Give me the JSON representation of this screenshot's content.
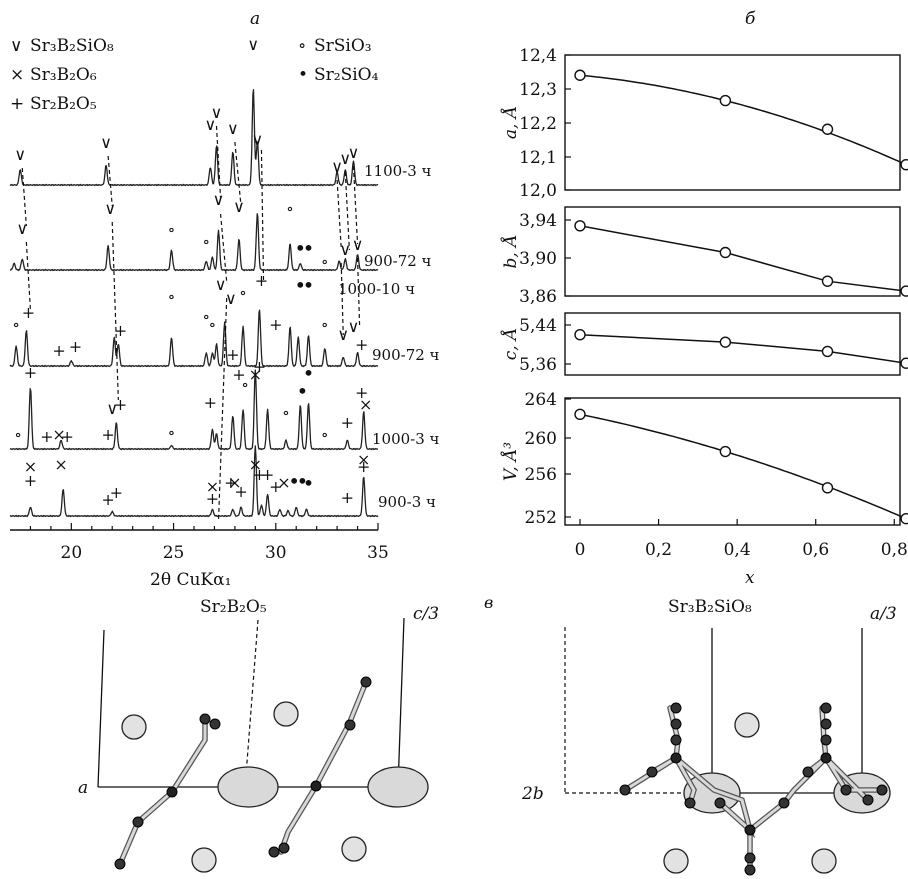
{
  "panels": {
    "a": "a",
    "b": "б",
    "c": "в"
  },
  "xrd": {
    "xlabel": "2θ CuKα₁",
    "xticks": [
      20,
      25,
      30,
      35
    ],
    "xlim": [
      17,
      35
    ],
    "legend": [
      {
        "symbol": "∨",
        "label": "Sr₃B₂SiO₈"
      },
      {
        "symbol": "×",
        "label": "Sr₃B₂O₆"
      },
      {
        "symbol": "+",
        "label": "Sr₂B₂O₅"
      },
      {
        "symbol": "∘",
        "label": "SrSiO₃"
      },
      {
        "symbol": "•",
        "label": "Sr₂SiO₄"
      }
    ],
    "traces": [
      {
        "label": "1100-3 ч",
        "peaks": [
          [
            17.5,
            0.35
          ],
          [
            21.7,
            0.45
          ],
          [
            26.8,
            0.4
          ],
          [
            27.1,
            0.9
          ],
          [
            27.9,
            0.75
          ],
          [
            28.9,
            2.2
          ],
          [
            29.1,
            1.0
          ],
          [
            33.0,
            0.3
          ],
          [
            33.4,
            0.35
          ],
          [
            33.8,
            0.55
          ]
        ]
      },
      {
        "label": "900-72 ч",
        "peaks": [
          [
            17.2,
            0.15
          ],
          [
            17.6,
            0.25
          ],
          [
            21.8,
            0.55
          ],
          [
            24.9,
            0.45
          ],
          [
            26.6,
            0.2
          ],
          [
            26.9,
            0.3
          ],
          [
            27.2,
            0.9
          ],
          [
            28.2,
            0.7
          ],
          [
            29.1,
            1.3
          ],
          [
            30.7,
            0.6
          ],
          [
            31.2,
            0.15
          ],
          [
            33.1,
            0.2
          ],
          [
            33.4,
            0.25
          ],
          [
            34.0,
            0.35
          ]
        ]
      },
      {
        "label": "900-72 ч",
        "peaks": [
          [
            17.3,
            0.45
          ],
          [
            17.8,
            0.8
          ],
          [
            20.0,
            0.12
          ],
          [
            22.1,
            0.65
          ],
          [
            22.3,
            0.5
          ],
          [
            24.9,
            0.65
          ],
          [
            26.6,
            0.3
          ],
          [
            26.9,
            0.3
          ],
          [
            27.1,
            0.5
          ],
          [
            27.5,
            1.0
          ],
          [
            28.4,
            0.9
          ],
          [
            29.2,
            1.3
          ],
          [
            30.7,
            0.9
          ],
          [
            31.1,
            0.65
          ],
          [
            31.6,
            0.7
          ],
          [
            32.4,
            0.4
          ],
          [
            33.3,
            0.2
          ],
          [
            34.0,
            0.3
          ]
        ]
      },
      {
        "label": "1000-3 ч",
        "peaks": [
          [
            18.0,
            1.4
          ],
          [
            19.5,
            0.2
          ],
          [
            22.2,
            0.6
          ],
          [
            24.9,
            0.08
          ],
          [
            26.9,
            0.45
          ],
          [
            27.1,
            0.35
          ],
          [
            27.9,
            0.75
          ],
          [
            28.4,
            0.9
          ],
          [
            29.0,
            1.8
          ],
          [
            29.6,
            0.9
          ],
          [
            30.5,
            0.2
          ],
          [
            31.2,
            1.0
          ],
          [
            31.6,
            1.05
          ],
          [
            33.5,
            0.2
          ],
          [
            34.3,
            0.85
          ]
        ]
      },
      {
        "label": "900-3 ч",
        "peaks": [
          [
            18.0,
            0.2
          ],
          [
            19.6,
            0.6
          ],
          [
            22.0,
            0.1
          ],
          [
            26.9,
            0.15
          ],
          [
            27.9,
            0.15
          ],
          [
            28.3,
            0.2
          ],
          [
            29.0,
            1.6
          ],
          [
            29.3,
            0.25
          ],
          [
            29.6,
            0.5
          ],
          [
            30.2,
            0.15
          ],
          [
            30.6,
            0.12
          ],
          [
            31.0,
            0.2
          ],
          [
            31.5,
            0.15
          ],
          [
            34.3,
            0.9
          ]
        ]
      }
    ],
    "annotations": [
      {
        "label": "1000-10 ч"
      }
    ]
  },
  "chart_data": [
    {
      "type": "scatter",
      "panel": "б",
      "ylabel": "a, Å",
      "x": [
        0,
        0.37,
        0.63,
        0.83
      ],
      "y": [
        12.34,
        12.265,
        12.18,
        12.075
      ],
      "xlim": [
        0,
        0.84
      ],
      "ylim": [
        12.0,
        12.4
      ],
      "yticks": [
        "12,0",
        "12,1",
        "12,2",
        "12,3",
        "12,4"
      ],
      "fit": "curve"
    },
    {
      "type": "scatter",
      "panel": "б",
      "ylabel": "b, Å",
      "x": [
        0,
        0.37,
        0.63,
        0.83
      ],
      "y": [
        3.931,
        3.904,
        3.875,
        3.865
      ],
      "xlim": [
        0,
        0.84
      ],
      "ylim": [
        3.86,
        3.95
      ],
      "yticks": [
        "3,86",
        "3,90",
        "3,94"
      ],
      "fit": "line"
    },
    {
      "type": "scatter",
      "panel": "б",
      "ylabel": "c, Å",
      "x": [
        0,
        0.37,
        0.63,
        0.83
      ],
      "y": [
        5.415,
        5.403,
        5.388,
        5.369
      ],
      "xlim": [
        0,
        0.84
      ],
      "ylim": [
        5.35,
        5.45
      ],
      "yticks": [
        "5,36",
        "5,44"
      ],
      "fit": "line"
    },
    {
      "type": "scatter",
      "panel": "б",
      "ylabel": "V, Å³",
      "x": [
        0,
        0.37,
        0.63,
        0.83
      ],
      "y": [
        262.7,
        258.6,
        254.6,
        251.2
      ],
      "xlim": [
        0,
        0.84
      ],
      "ylim": [
        250.5,
        264.5
      ],
      "yticks": [
        "252",
        "256",
        "260",
        "264"
      ],
      "xticks": [
        "0",
        "0,2",
        "0,4",
        "0,6",
        "0,8"
      ],
      "xlabel": "x",
      "fit": "curve"
    }
  ],
  "structures": [
    {
      "title": "Sr₂B₂O₅",
      "axis_h": "a",
      "axis_v": "c/3"
    },
    {
      "title": "Sr₃B₂SiO₈",
      "axis_h": "2b",
      "axis_v": "a/3"
    }
  ]
}
